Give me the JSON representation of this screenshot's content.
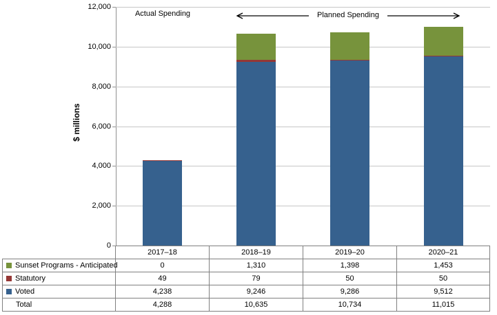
{
  "chart_data": {
    "type": "bar",
    "stacked": true,
    "ylabel": "$ millions",
    "ylim": [
      0,
      12000
    ],
    "ytick_step": 2000,
    "yticks": [
      "12,000",
      "10,000",
      "8,000",
      "6,000",
      "4,000",
      "2,000",
      "0"
    ],
    "categories": [
      "2017–18",
      "2018–19",
      "2019–20",
      "2020–21"
    ],
    "series": [
      {
        "name": "Voted",
        "color": "#36618E",
        "values": [
          4238,
          9246,
          9286,
          9512
        ]
      },
      {
        "name": "Statutory",
        "color": "#953735",
        "values": [
          49,
          79,
          50,
          50
        ]
      },
      {
        "name": "Sunset Programs - Anticipated",
        "color": "#77933C",
        "values": [
          0,
          1310,
          1398,
          1453
        ]
      }
    ],
    "totals": [
      4288,
      10635,
      10734,
      11015
    ],
    "annotations": {
      "actual": "Actual Spending",
      "planned": "Planned Spending"
    },
    "grid": true,
    "legend_position": "table-below-left"
  },
  "table": {
    "header": [
      "",
      "2017–18",
      "2018–19",
      "2019–20",
      "2020–21"
    ],
    "rows": [
      {
        "label": "Sunset Programs - Anticipated",
        "swatch": "#77933C",
        "values": [
          "0",
          "1,310",
          "1,398",
          "1,453"
        ]
      },
      {
        "label": "Statutory",
        "swatch": "#953735",
        "values": [
          "49",
          "79",
          "50",
          "50"
        ]
      },
      {
        "label": "Voted",
        "swatch": "#36618E",
        "values": [
          "4,238",
          "9,246",
          "9,286",
          "9,512"
        ]
      },
      {
        "label": "Total",
        "swatch": null,
        "values": [
          "4,288",
          "10,635",
          "10,734",
          "11,015"
        ]
      }
    ]
  },
  "colors": {
    "gridline": "#c6c6c6",
    "axis": "#8f8f8f",
    "table_border": "#7f7f7f",
    "voted": "#36618E",
    "statutory": "#953735",
    "sunset": "#77933C"
  }
}
